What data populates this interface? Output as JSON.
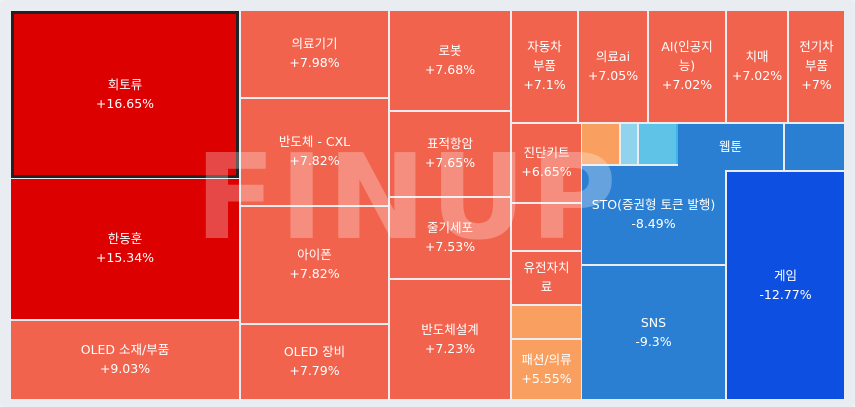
{
  "chart_data": {
    "type": "treemap",
    "watermark": "FINUP",
    "tiles": [
      {
        "name": "회토류",
        "change": "+16.65%",
        "color": "#dd0000",
        "selected": true
      },
      {
        "name": "한동훈",
        "change": "+15.34%",
        "color": "#dd0000"
      },
      {
        "name": "OLED 소재/부품",
        "change": "+9.03%",
        "color": "#f2634d"
      },
      {
        "name": "의료기기",
        "change": "+7.98%",
        "color": "#f2634d"
      },
      {
        "name": "반도체 - CXL",
        "change": "+7.82%",
        "color": "#f2634d"
      },
      {
        "name": "아이폰",
        "change": "+7.82%",
        "color": "#f2634d"
      },
      {
        "name": "OLED 장비",
        "change": "+7.79%",
        "color": "#f2634d"
      },
      {
        "name": "로봇",
        "change": "+7.68%",
        "color": "#f2634d"
      },
      {
        "name": "표적항암",
        "change": "+7.65%",
        "color": "#f2634d"
      },
      {
        "name": "줄기세포",
        "change": "+7.53%",
        "color": "#f2634d"
      },
      {
        "name": "반도체설계",
        "change": "+7.23%",
        "color": "#f2634d"
      },
      {
        "name": "자동차\n부품",
        "change": "+7.1%",
        "color": "#f2634d"
      },
      {
        "name": "의료ai",
        "change": "+7.05%",
        "color": "#f2634d"
      },
      {
        "name": "AI(인공지\n능)",
        "change": "+7.02%",
        "color": "#f2634d"
      },
      {
        "name": "치매",
        "change": "+7.02%",
        "color": "#f2634d"
      },
      {
        "name": "전기차\n부품",
        "change": "+7%",
        "color": "#f2634d"
      },
      {
        "name": "진단키트",
        "change": "+6.65%",
        "color": "#f2634d"
      },
      {
        "name": "",
        "change": "",
        "color": "#f2634d"
      },
      {
        "name": "유전자치\n료",
        "change": "",
        "color": "#f2634d"
      },
      {
        "name": "",
        "change": "",
        "color": "#f9a060"
      },
      {
        "name": "패션/의류",
        "change": "+5.55%",
        "color": "#f9a060"
      },
      {
        "name": "",
        "change": "",
        "color": "#f9a060"
      },
      {
        "name": "",
        "change": "",
        "color": "#8fd3ec"
      },
      {
        "name": "",
        "change": "",
        "color": "#5fc3e8"
      },
      {
        "name": "",
        "change": "",
        "color": "#3fb4e6"
      },
      {
        "name": "웹툰",
        "change": "",
        "color": "#2a7fd2"
      },
      {
        "name": "",
        "change": "",
        "color": "#2a7fd2"
      },
      {
        "name": "STO(증권형 토큰 발행)",
        "change": "-8.49%",
        "color": "#2a7fd2"
      },
      {
        "name": "SNS",
        "change": "-9.3%",
        "color": "#2a7fd2"
      },
      {
        "name": "게임",
        "change": "-12.77%",
        "color": "#0d4fe0"
      }
    ]
  }
}
